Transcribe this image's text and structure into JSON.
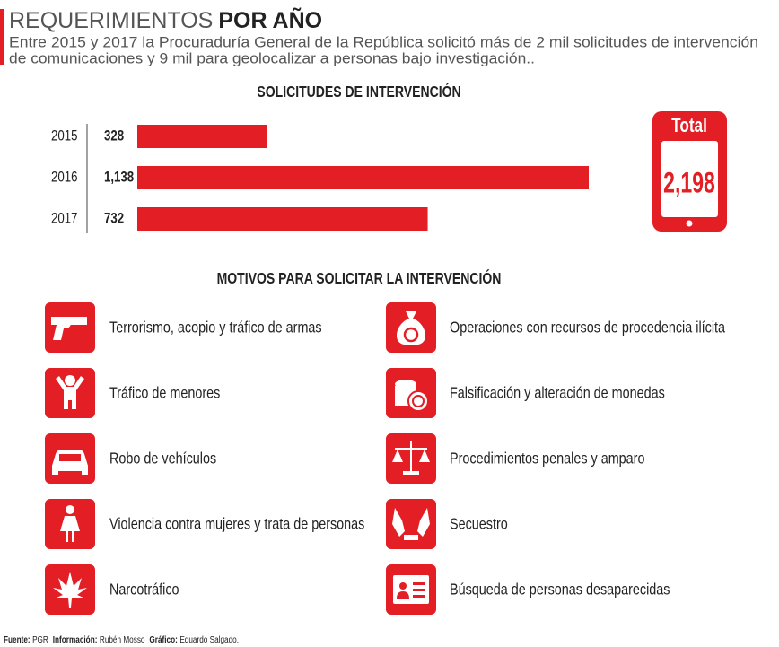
{
  "header": {
    "title_light": "REQUERIMIENTOS",
    "title_bold": "POR AÑO",
    "subtitle": [
      "Entre 2015 y 2017 la Procuraduría General de la República solicitó más de 2 mil solicitudes de intervención",
      "de comunicaciones y 9 mil para geolocalizar a personas bajo investigación.."
    ]
  },
  "chart_data": {
    "type": "bar",
    "orientation": "horizontal",
    "title": "SOLICITUDES DE INTERVENCIÓN",
    "categories": [
      "2015",
      "2016",
      "2017"
    ],
    "values": [
      328,
      1138,
      732
    ],
    "value_labels": [
      "328",
      "1,138",
      "732"
    ],
    "color": "#e31e24"
  },
  "total": {
    "label": "Total",
    "value": 2198,
    "value_label": "2,198"
  },
  "motives": {
    "title": "MOTIVOS PARA SOLICITAR LA INTERVENCIÓN",
    "items": [
      "Terrorismo, acopio y tráfico de armas",
      "Tráfico de menores",
      "Robo de vehículos",
      "Violencia contra mujeres y trata de personas",
      "Narcotráfico",
      "Operaciones con recursos de procedencia ilícita",
      "Falsificación y alteración de monedas",
      "Procedimientos penales y amparo",
      "Secuestro",
      "Búsqueda de personas desaparecidas"
    ]
  },
  "footer": {
    "source_label": "Fuente:",
    "source": "PGR",
    "info_label": "Información:",
    "info": "Rubén Mosso",
    "graphic_label": "Gráfico:",
    "graphic": "Eduardo Salgado."
  }
}
